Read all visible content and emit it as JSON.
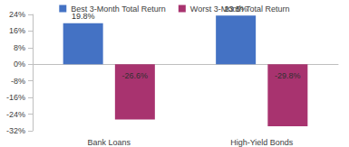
{
  "chart_data": {
    "type": "bar",
    "categories": [
      "Bank Loans",
      "High-Yield Bonds"
    ],
    "series": [
      {
        "name": "Best 3-Month Total Return",
        "color": "#4472c4",
        "values": [
          19.8,
          23.5
        ],
        "value_labels": [
          "19.8%",
          "23.5%"
        ]
      },
      {
        "name": "Worst 3-Month Total Return",
        "color": "#a8336f",
        "values": [
          -26.6,
          -29.8
        ],
        "value_labels": [
          "-26.6%",
          "-29.8%"
        ]
      }
    ],
    "ylim": [
      -32,
      24
    ],
    "yticks": [
      {
        "value": -32,
        "label": "-32%"
      },
      {
        "value": -24,
        "label": "-24%"
      },
      {
        "value": -16,
        "label": "-16%"
      },
      {
        "value": -8,
        "label": "-8%"
      },
      {
        "value": 0,
        "label": "0%"
      },
      {
        "value": 8,
        "label": "8%"
      },
      {
        "value": 16,
        "label": "16%"
      },
      {
        "value": 24,
        "label": "24%"
      }
    ],
    "grid": false,
    "legend": "top",
    "data_labels": true
  }
}
